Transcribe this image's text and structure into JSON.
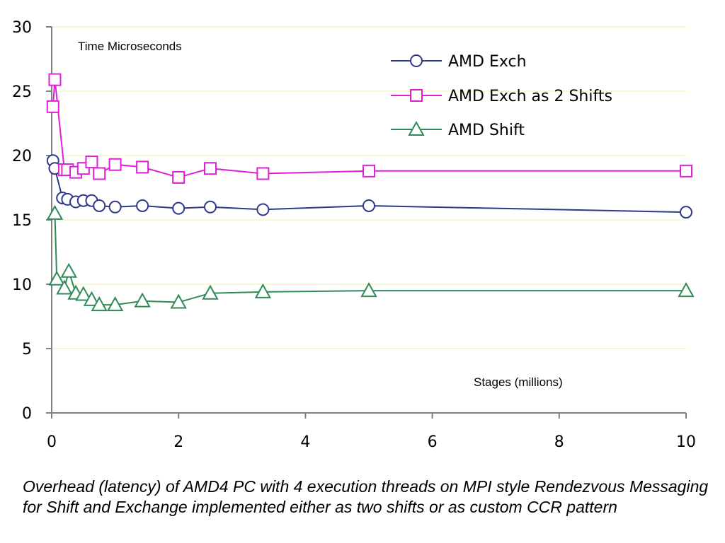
{
  "chart_data": {
    "type": "line",
    "ylabel": "Time Microseconds",
    "xlabel": "Stages (millions)",
    "xlim": [
      0,
      10
    ],
    "ylim": [
      0,
      30
    ],
    "xticks": [
      0,
      2,
      4,
      6,
      8,
      10
    ],
    "yticks": [
      0,
      5,
      10,
      15,
      20,
      25,
      30
    ],
    "grid": "horizontal",
    "legend_position": "top-right",
    "series": [
      {
        "name": "AMD Exch",
        "color": "#2E3A87",
        "marker": "circle",
        "x": [
          0.02,
          0.05,
          0.17,
          0.25,
          0.38,
          0.5,
          0.63,
          0.75,
          1.0,
          1.43,
          2.0,
          2.5,
          3.33,
          5.0,
          10.0
        ],
        "y": [
          19.6,
          19.0,
          16.7,
          16.6,
          16.4,
          16.5,
          16.5,
          16.1,
          16.0,
          16.1,
          15.9,
          16.0,
          15.8,
          16.1,
          15.6
        ]
      },
      {
        "name": "AMD Exch as 2 Shifts",
        "color": "#E020D8",
        "marker": "square",
        "x": [
          0.02,
          0.05,
          0.2,
          0.25,
          0.38,
          0.5,
          0.63,
          0.75,
          1.0,
          1.43,
          2.0,
          2.5,
          3.33,
          5.0,
          10.0
        ],
        "y": [
          23.8,
          25.9,
          18.9,
          18.9,
          18.7,
          19.0,
          19.5,
          18.6,
          19.3,
          19.1,
          18.3,
          19.0,
          18.6,
          18.8,
          18.8
        ]
      },
      {
        "name": "AMD Shift",
        "color": "#2E8B57",
        "marker": "triangle",
        "x": [
          0.05,
          0.08,
          0.2,
          0.27,
          0.38,
          0.5,
          0.63,
          0.75,
          1.0,
          1.43,
          2.0,
          2.5,
          3.33,
          5.0,
          10.0
        ],
        "y": [
          15.5,
          10.4,
          9.7,
          11.0,
          9.3,
          9.2,
          8.8,
          8.4,
          8.4,
          8.7,
          8.6,
          9.3,
          9.4,
          9.5,
          9.5
        ]
      }
    ]
  },
  "caption": "Overhead (latency) of AMD4 PC with 4 execution threads on MPI style Rendezvous Messaging for Shift and Exchange implemented either as two shifts or as custom CCR pattern"
}
